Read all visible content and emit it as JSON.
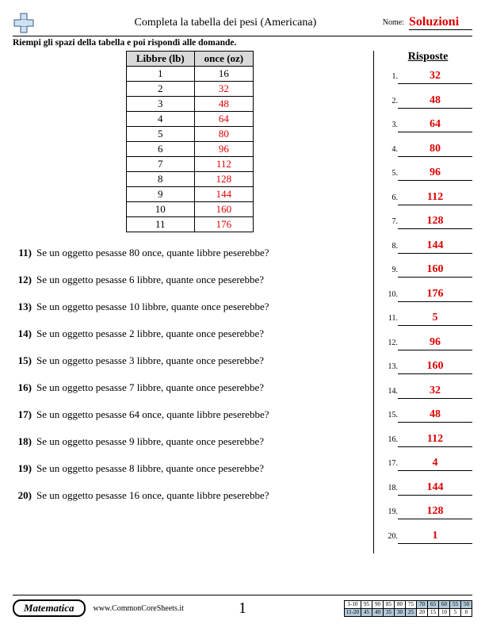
{
  "header": {
    "title": "Completa la tabella dei pesi (Americana)",
    "name_label": "Nome:",
    "name_value": "Soluzioni"
  },
  "instructions": "Riempi gli spazi della tabella e poi rispondi alle domande.",
  "table": {
    "col1": "Libbre (lb)",
    "col2": "once (oz)",
    "rows": [
      {
        "lb": "1",
        "oz": "16",
        "red": false
      },
      {
        "lb": "2",
        "oz": "32",
        "red": true
      },
      {
        "lb": "3",
        "oz": "48",
        "red": true
      },
      {
        "lb": "4",
        "oz": "64",
        "red": true
      },
      {
        "lb": "5",
        "oz": "80",
        "red": true
      },
      {
        "lb": "6",
        "oz": "96",
        "red": true
      },
      {
        "lb": "7",
        "oz": "112",
        "red": true
      },
      {
        "lb": "8",
        "oz": "128",
        "red": true
      },
      {
        "lb": "9",
        "oz": "144",
        "red": true
      },
      {
        "lb": "10",
        "oz": "160",
        "red": true
      },
      {
        "lb": "11",
        "oz": "176",
        "red": true
      }
    ]
  },
  "questions": [
    {
      "n": "11)",
      "t": "Se un oggetto pesasse 80 once, quante libbre peserebbe?"
    },
    {
      "n": "12)",
      "t": "Se un oggetto pesasse 6 libbre, quante once peserebbe?"
    },
    {
      "n": "13)",
      "t": "Se un oggetto pesasse 10 libbre, quante once peserebbe?"
    },
    {
      "n": "14)",
      "t": "Se un oggetto pesasse 2 libbre, quante once peserebbe?"
    },
    {
      "n": "15)",
      "t": "Se un oggetto pesasse 3 libbre, quante once peserebbe?"
    },
    {
      "n": "16)",
      "t": "Se un oggetto pesasse 7 libbre, quante once peserebbe?"
    },
    {
      "n": "17)",
      "t": "Se un oggetto pesasse 64 once, quante libbre peserebbe?"
    },
    {
      "n": "18)",
      "t": "Se un oggetto pesasse 9 libbre, quante once peserebbe?"
    },
    {
      "n": "19)",
      "t": "Se un oggetto pesasse 8 libbre, quante once peserebbe?"
    },
    {
      "n": "20)",
      "t": "Se un oggetto pesasse 16 once, quante libbre peserebbe?"
    }
  ],
  "answers_title": "Risposte",
  "answers": [
    {
      "n": "1.",
      "v": "32"
    },
    {
      "n": "2.",
      "v": "48"
    },
    {
      "n": "3.",
      "v": "64"
    },
    {
      "n": "4.",
      "v": "80"
    },
    {
      "n": "5.",
      "v": "96"
    },
    {
      "n": "6.",
      "v": "112"
    },
    {
      "n": "7.",
      "v": "128"
    },
    {
      "n": "8.",
      "v": "144"
    },
    {
      "n": "9.",
      "v": "160"
    },
    {
      "n": "10.",
      "v": "176"
    },
    {
      "n": "11.",
      "v": "5"
    },
    {
      "n": "12.",
      "v": "96"
    },
    {
      "n": "13.",
      "v": "160"
    },
    {
      "n": "14.",
      "v": "32"
    },
    {
      "n": "15.",
      "v": "48"
    },
    {
      "n": "16.",
      "v": "112"
    },
    {
      "n": "17.",
      "v": "4"
    },
    {
      "n": "18.",
      "v": "144"
    },
    {
      "n": "19.",
      "v": "128"
    },
    {
      "n": "20.",
      "v": "1"
    }
  ],
  "footer": {
    "subject": "Matematica",
    "website": "www.CommonCoreSheets.it",
    "page": "1",
    "score": {
      "r1_label": "1-10",
      "r2_label": "11-20",
      "r1": [
        "95",
        "90",
        "85",
        "80",
        "75",
        "70",
        "65",
        "60",
        "55",
        "50"
      ],
      "r2": [
        "45",
        "40",
        "35",
        "30",
        "25",
        "20",
        "15",
        "10",
        "5",
        "0"
      ]
    }
  },
  "colors": {
    "answer_red": "#d00000",
    "table_header_bg": "#d9d9d9",
    "score_dim_bg": "#b0c8d8"
  }
}
